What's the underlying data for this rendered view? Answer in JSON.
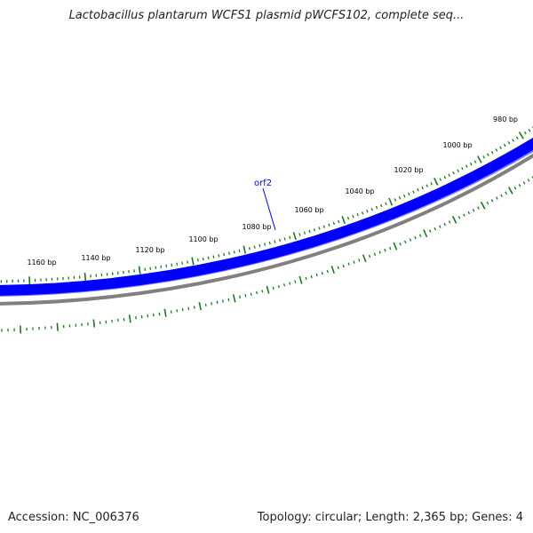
{
  "title": "Lactobacillus plantarum WCFS1 plasmid pWCFS102, complete seq...",
  "accession_label": "Accession: NC_006376",
  "summary_label": "Topology: circular; Length: 2,365 bp; Genes: 4",
  "ruler": {
    "tick_labels": [
      "980 bp",
      "1000 bp",
      "1020 bp",
      "1040 bp",
      "1060 bp",
      "1080 bp",
      "1100 bp",
      "1120 bp",
      "1140 bp",
      "1160 bp"
    ]
  },
  "features": [
    {
      "label": "orf2",
      "color": "#0000ff"
    }
  ],
  "colors": {
    "feature_band": "#0000ff",
    "feature_band_light": "#8080ff",
    "backbone": "#808080",
    "ticks": "#1a7a1a"
  }
}
